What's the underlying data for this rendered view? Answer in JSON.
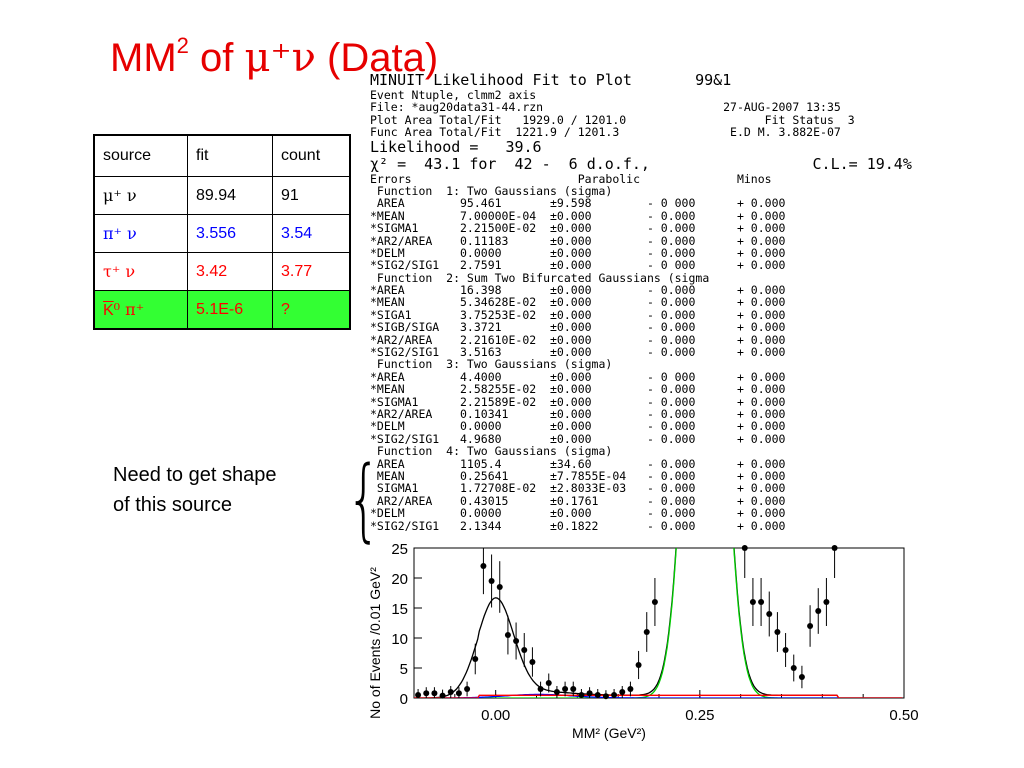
{
  "slide": {
    "title_prefix": "MM",
    "title_sup": "2",
    "title_mid": " of ",
    "title_particles": "μ⁺ν",
    "title_suffix": " (Data)"
  },
  "table": {
    "headers": [
      "source",
      "fit",
      "count"
    ],
    "rows": [
      {
        "source": "μ⁺ ν",
        "fit": "89.94",
        "count": "91",
        "color": "#000000",
        "highlight": false
      },
      {
        "source": "π⁺ ν",
        "fit": "3.556",
        "count": "3.54",
        "color": "#0000ff",
        "highlight": false
      },
      {
        "source": "τ⁺ ν",
        "fit": "3.42",
        "count": "3.77",
        "color": "#ff0000",
        "highlight": false
      },
      {
        "source_bar": "K",
        "source_rest": "⁰ π⁺",
        "fit": "5.1E-6",
        "count": "?",
        "color": "#ff0000",
        "highlight": true
      }
    ]
  },
  "note": {
    "line1": "Need to get shape",
    "line2": "of this source"
  },
  "fit_panel": {
    "lines": [
      "MINUIT Likelihood Fit to Plot       99&1",
      "Event Ntuple, clmm2 axis",
      "File: *aug20data31-44.rzn                          27-AUG-2007 13:35",
      "Plot Area Total/Fit   1929.0 / 1201.0                    Fit Status  3",
      "Func Area Total/Fit  1221.9 / 1201.3                E.D M. 3.882E-07",
      "Likelihood =   39.6",
      "χ² =  43.1 for  42 -  6 d.o.f.,                  C.L.= 19.4%",
      "Errors                        Parabolic              Minos",
      " Function  1: Two Gaussians (sigma)",
      " AREA        95.461       ±9.598        - 0 000      + 0.000",
      "*MEAN        7.00000E-04  ±0.000        - 0.000      + 0.000",
      "*SIGMA1      2.21500E-02  ±0.000        - 0.000      + 0.000",
      "*AR2/AREA    0.11183      ±0.000        - 0.000      + 0.000",
      "*DELM        0.0000       ±0.000        - 0.000      + 0.000",
      "*SIG2/SIG1   2.7591       ±0.000        - 0 000      + 0.000",
      " Function  2: Sum Two Bifurcated Gaussians (sigma",
      "*AREA        16.398       ±0.000        - 0.000      + 0.000",
      "*MEAN        5.34628E-02  ±0.000        - 0.000      + 0.000",
      "*SIGA1       3.75253E-02  ±0.000        - 0.000      + 0.000",
      "*SIGB/SIGA   3.3721       ±0.000        - 0.000      + 0.000",
      "*AR2/AREA    2.21610E-02  ±0.000        - 0.000      + 0.000",
      "*SIG2/SIG1   3.5163       ±0.000        - 0.000      + 0.000",
      " Function  3: Two Gaussians (sigma)",
      "*AREA        4.4000       ±0.000        - 0 000      + 0.000",
      "*MEAN        2.58255E-02  ±0.000        - 0.000      + 0.000",
      "*SIGMA1      2.21589E-02  ±0.000        - 0.000      + 0.000",
      "*AR2/AREA    0.10341      ±0.000        - 0.000      + 0.000",
      "*DELM        0.0000       ±0.000        - 0.000      + 0.000",
      "*SIG2/SIG1   4.9680       ±0.000        - 0.000      + 0.000",
      " Function  4: Two Gaussians (sigma)",
      " AREA        1105.4       ±34.60        - 0.000      + 0.000",
      " MEAN        0.25641      ±7.7855E-04   - 0.000      + 0.000",
      " SIGMA1      1.72708E-02  ±2.8033E-03   - 0.000      + 0.000",
      " AR2/AREA    0.43015      ±0.1761       - 0.000      + 0.000",
      "*DELM        0.0000       ±0.000        - 0.000      + 0.000",
      "*SIG2/SIG1   2.1344       ±0.1822       - 0.000      + 0.000"
    ]
  },
  "chart_data": {
    "type": "scatter",
    "xlabel": "MM² (GeV²)",
    "ylabel": "No of Events /0.01 GeV²",
    "xlim": [
      -0.1,
      0.5
    ],
    "ylim": [
      0,
      25
    ],
    "xticks": [
      "0.00",
      "0.25",
      "0.50"
    ],
    "yticks": [
      "0",
      "5",
      "10",
      "15",
      "20",
      "25"
    ],
    "points": [
      {
        "x": -0.095,
        "y": 0.5
      },
      {
        "x": -0.085,
        "y": 0.8
      },
      {
        "x": -0.075,
        "y": 0.8
      },
      {
        "x": -0.065,
        "y": 0.4
      },
      {
        "x": -0.055,
        "y": 1.0
      },
      {
        "x": -0.045,
        "y": 0.8
      },
      {
        "x": -0.035,
        "y": 1.5
      },
      {
        "x": -0.025,
        "y": 6.5
      },
      {
        "x": -0.015,
        "y": 22.0
      },
      {
        "x": -0.005,
        "y": 19.5
      },
      {
        "x": 0.005,
        "y": 18.5
      },
      {
        "x": 0.015,
        "y": 10.5
      },
      {
        "x": 0.025,
        "y": 9.5
      },
      {
        "x": 0.035,
        "y": 8.0
      },
      {
        "x": 0.045,
        "y": 6.0
      },
      {
        "x": 0.055,
        "y": 1.5
      },
      {
        "x": 0.065,
        "y": 2.5
      },
      {
        "x": 0.075,
        "y": 1.0
      },
      {
        "x": 0.085,
        "y": 1.5
      },
      {
        "x": 0.095,
        "y": 1.5
      },
      {
        "x": 0.105,
        "y": 0.5
      },
      {
        "x": 0.115,
        "y": 0.8
      },
      {
        "x": 0.125,
        "y": 0.5
      },
      {
        "x": 0.135,
        "y": 0.3
      },
      {
        "x": 0.145,
        "y": 0.5
      },
      {
        "x": 0.155,
        "y": 1.0
      },
      {
        "x": 0.165,
        "y": 1.5
      },
      {
        "x": 0.175,
        "y": 5.5
      },
      {
        "x": 0.185,
        "y": 11.0
      },
      {
        "x": 0.195,
        "y": 16.0
      },
      {
        "x": 0.305,
        "y": 25.0
      },
      {
        "x": 0.315,
        "y": 16.0
      },
      {
        "x": 0.325,
        "y": 16.0
      },
      {
        "x": 0.335,
        "y": 14.0
      },
      {
        "x": 0.345,
        "y": 11.0
      },
      {
        "x": 0.355,
        "y": 8.0
      },
      {
        "x": 0.365,
        "y": 5.0
      },
      {
        "x": 0.375,
        "y": 3.5
      },
      {
        "x": 0.385,
        "y": 12.0
      },
      {
        "x": 0.395,
        "y": 14.5
      },
      {
        "x": 0.405,
        "y": 16.0
      },
      {
        "x": 0.415,
        "y": 25.0
      }
    ],
    "curves": {
      "total_color": "#000000",
      "signal_color": "#00cc00",
      "bkg1_color": "#0000ff",
      "bkg2_color": "#ff0000"
    }
  }
}
